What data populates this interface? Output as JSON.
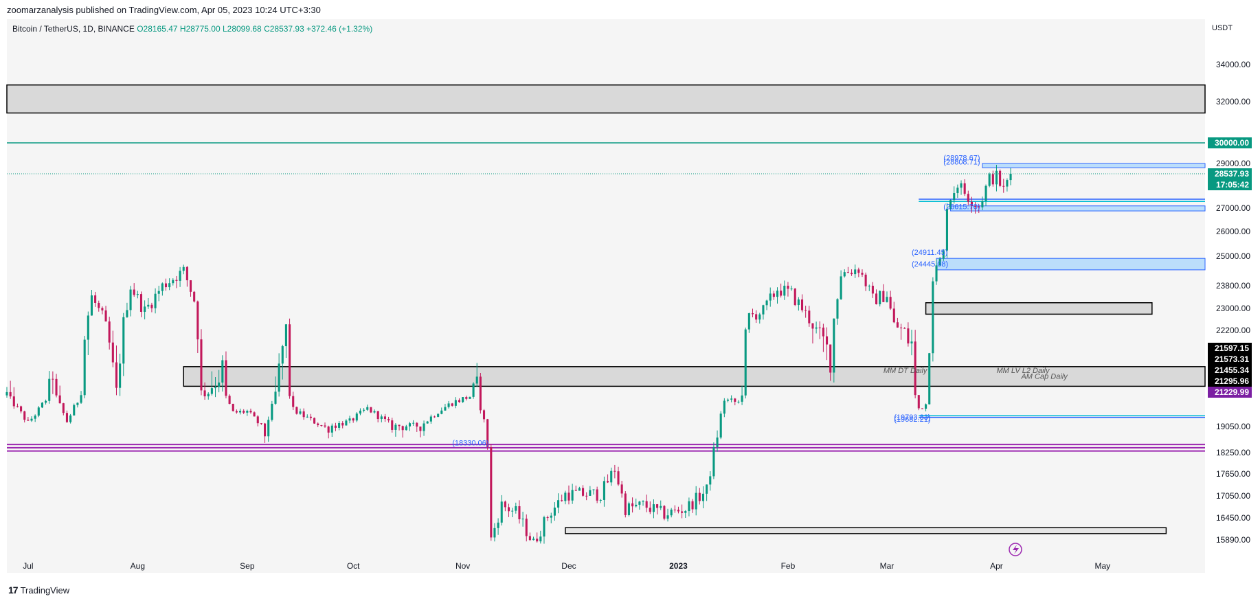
{
  "header": {
    "publisher_text": "zoomarzanalysis published on TradingView.com, Apr 05, 2023 10:24 UTC+3:30"
  },
  "symbol": {
    "name": "Bitcoin / TetherUS, 1D, BINANCE",
    "open": "O28165.47",
    "high": "H28775.00",
    "low": "L28099.68",
    "close": "C28537.93",
    "change": "+372.46 (+1.32%)"
  },
  "currency": "USDT",
  "footer": {
    "brand": "TradingView"
  },
  "colors": {
    "up": "#089981",
    "down": "#c2185b",
    "purple_line": "#9c27b0",
    "teal_line": "#089981",
    "blue_zone": "#2962ff",
    "cyan_label": "#00bcd4",
    "gray_zone": "#d9d9d9"
  },
  "chart_data": {
    "type": "candlestick",
    "symbol": "BTCUSDT",
    "timeframe": "1D",
    "ylim": [
      15300,
      35500
    ],
    "y_ticks": [
      34000,
      32000,
      29000,
      27000,
      26000,
      25000,
      23800,
      23000,
      22200,
      19050,
      18250,
      17650,
      17050,
      16450,
      15890
    ],
    "y_tick_labels": [
      "34000.00",
      "32000.00",
      "29000.00",
      "27000.00",
      "26000.00",
      "25000.00",
      "23800.00",
      "23000.00",
      "22200.00",
      "19050.00",
      "18250.00",
      "17650.00",
      "17050.00",
      "16450.00",
      "15890.00"
    ],
    "x_start_date": "2022-06-25",
    "x_end_date": "2023-05-30",
    "x_ticks": [
      {
        "label": "Jul",
        "date": "2022-07-01",
        "bold": false
      },
      {
        "label": "Aug",
        "date": "2022-08-01",
        "bold": false
      },
      {
        "label": "Sep",
        "date": "2022-09-01",
        "bold": false
      },
      {
        "label": "Oct",
        "date": "2022-10-01",
        "bold": false
      },
      {
        "label": "Nov",
        "date": "2022-11-01",
        "bold": false
      },
      {
        "label": "Dec",
        "date": "2022-12-01",
        "bold": false
      },
      {
        "label": "2023",
        "date": "2023-01-01",
        "bold": true
      },
      {
        "label": "Feb",
        "date": "2023-02-01",
        "bold": false
      },
      {
        "label": "Mar",
        "date": "2023-03-01",
        "bold": false
      },
      {
        "label": "Apr",
        "date": "2023-04-01",
        "bold": false
      },
      {
        "label": "May",
        "date": "2023-05-01",
        "bold": false
      }
    ],
    "price_path": [
      [
        "2022-06-25",
        21200
      ],
      [
        "2022-06-28",
        20300
      ],
      [
        "2022-07-01",
        19300
      ],
      [
        "2022-07-04",
        20200
      ],
      [
        "2022-07-08",
        21600
      ],
      [
        "2022-07-12",
        19400
      ],
      [
        "2022-07-15",
        20800
      ],
      [
        "2022-07-19",
        23400
      ],
      [
        "2022-07-22",
        22700
      ],
      [
        "2022-07-26",
        21200
      ],
      [
        "2022-07-30",
        23800
      ],
      [
        "2022-08-03",
        22900
      ],
      [
        "2022-08-08",
        23800
      ],
      [
        "2022-08-14",
        24400
      ],
      [
        "2022-08-17",
        23300
      ],
      [
        "2022-08-19",
        21200
      ],
      [
        "2022-08-25",
        21600
      ],
      [
        "2022-08-28",
        20000
      ],
      [
        "2022-09-01",
        20100
      ],
      [
        "2022-09-06",
        18800
      ],
      [
        "2022-09-09",
        21200
      ],
      [
        "2022-09-12",
        22300
      ],
      [
        "2022-09-14",
        20200
      ],
      [
        "2022-09-19",
        19500
      ],
      [
        "2022-09-23",
        19000
      ],
      [
        "2022-09-30",
        19400
      ],
      [
        "2022-10-05",
        20300
      ],
      [
        "2022-10-12",
        19100
      ],
      [
        "2022-10-20",
        19100
      ],
      [
        "2022-10-25",
        20100
      ],
      [
        "2022-10-29",
        20700
      ],
      [
        "2022-11-05",
        21300
      ],
      [
        "2022-11-08",
        18500
      ],
      [
        "2022-11-09",
        15900
      ],
      [
        "2022-11-12",
        16800
      ],
      [
        "2022-11-16",
        16600
      ],
      [
        "2022-11-21",
        15800
      ],
      [
        "2022-11-25",
        16500
      ],
      [
        "2022-11-30",
        17100
      ],
      [
        "2022-12-05",
        17100
      ],
      [
        "2022-12-10",
        17100
      ],
      [
        "2022-12-14",
        17800
      ],
      [
        "2022-12-17",
        16700
      ],
      [
        "2022-12-22",
        16800
      ],
      [
        "2022-12-28",
        16550
      ],
      [
        "2023-01-03",
        16700
      ],
      [
        "2023-01-09",
        17200
      ],
      [
        "2023-01-12",
        18800
      ],
      [
        "2023-01-14",
        20900
      ],
      [
        "2023-01-18",
        20700
      ],
      [
        "2023-01-21",
        22700
      ],
      [
        "2023-01-25",
        22900
      ],
      [
        "2023-01-29",
        23700
      ],
      [
        "2023-02-02",
        23500
      ],
      [
        "2023-02-05",
        23000
      ],
      [
        "2023-02-09",
        22200
      ],
      [
        "2023-02-13",
        21800
      ],
      [
        "2023-02-16",
        24300
      ],
      [
        "2023-02-21",
        24500
      ],
      [
        "2023-02-25",
        23300
      ],
      [
        "2023-03-01",
        23500
      ],
      [
        "2023-03-03",
        22400
      ],
      [
        "2023-03-08",
        22000
      ],
      [
        "2023-03-10",
        20300
      ],
      [
        "2023-03-12",
        20600
      ],
      [
        "2023-03-13",
        22100
      ],
      [
        "2023-03-14",
        24200
      ],
      [
        "2023-03-17",
        25100
      ],
      [
        "2023-03-18",
        27200
      ],
      [
        "2023-03-21",
        28100
      ],
      [
        "2023-03-24",
        27500
      ],
      [
        "2023-03-27",
        27100
      ],
      [
        "2023-03-30",
        28300
      ],
      [
        "2023-04-01",
        28400
      ],
      [
        "2023-04-03",
        27800
      ],
      [
        "2023-04-05",
        28537.93
      ]
    ],
    "horizontal_lines": [
      {
        "price": 30000,
        "color": "#089981",
        "start": "2022-06-25",
        "label": "30000.00"
      }
    ],
    "zones": [
      {
        "name": "gray-resistance-zone",
        "top": 32900,
        "bottom": 31450,
        "start": "2022-06-25",
        "end": "2023-05-30",
        "fill": "#d9d9d9"
      },
      {
        "name": "gray-mid-zone",
        "top": 21655,
        "bottom": 21360,
        "start": "2022-08-14",
        "end": "2023-05-30",
        "fill": "#d9d9d9"
      },
      {
        "name": "gray-march-zone",
        "top": 23200,
        "bottom": 22790,
        "start": "2023-03-12",
        "end": "2023-05-15",
        "fill": "#d9d9d9"
      },
      {
        "name": "bottom-zone",
        "top": 16200,
        "bottom": 16050,
        "start": "2022-11-30",
        "end": "2023-05-19",
        "fill": "#e6e6e6"
      },
      {
        "name": "blue-zone-24k",
        "top": 24911.45,
        "bottom": 24445.08,
        "start": "2023-03-15",
        "end": "2023-05-30",
        "fill": "#bbdefb"
      },
      {
        "name": "blue-zone-27k",
        "top": 27100,
        "bottom": 26880,
        "start": "2023-03-19",
        "end": "2023-05-30",
        "fill": "#bbdefb"
      },
      {
        "name": "blue-zone-29k",
        "top": 29000,
        "bottom": 28808.71,
        "start": "2023-03-28",
        "end": "2023-05-30",
        "fill": "#bbdefb"
      }
    ],
    "purple_lines": [
      18500,
      18400,
      18300
    ],
    "level_labels": [
      {
        "price": 21597.15,
        "text": "21597.15",
        "bg": "#000000"
      },
      {
        "price": 21573.31,
        "text": "21573.31",
        "bg": "#000000"
      },
      {
        "price": 21455.34,
        "text": "21455.34",
        "bg": "#000000"
      },
      {
        "price": 21295.96,
        "text": "21295.96",
        "bg": "#000000"
      },
      {
        "price": 21229.99,
        "text": "21229.99",
        "bg": "#7b1fa2"
      }
    ],
    "annotations": [
      {
        "text": "(28978.67)",
        "price": 29150,
        "date": "2023-03-17"
      },
      {
        "text": "(28808.71)",
        "price": 28950,
        "date": "2023-03-17"
      },
      {
        "text": "(24911.45)",
        "price": 25050,
        "date": "2023-03-08"
      },
      {
        "text": "(24445.08)",
        "price": 24580,
        "date": "2023-03-08"
      },
      {
        "text": "(26615.70)",
        "price": 26950,
        "date": "2023-03-17"
      },
      {
        "text": "(19793.83)",
        "price": 19520,
        "date": "2023-03-03"
      },
      {
        "text": "(19682.21)",
        "price": 19380,
        "date": "2023-03-03"
      },
      {
        "text": "MM DT Daily",
        "price": 21560,
        "date": "2023-02-28"
      },
      {
        "text": "MM LV L2 Daily",
        "price": 21560,
        "date": "2023-04-01"
      },
      {
        "text": "AM Cap Daily",
        "price": 21470,
        "date": "2023-04-08"
      },
      {
        "text": "(18330.06)",
        "price": 18470,
        "date": "2022-10-29"
      }
    ],
    "last_price": {
      "value": "28537.93",
      "countdown": "17:05:42",
      "bg": "#089981"
    }
  }
}
